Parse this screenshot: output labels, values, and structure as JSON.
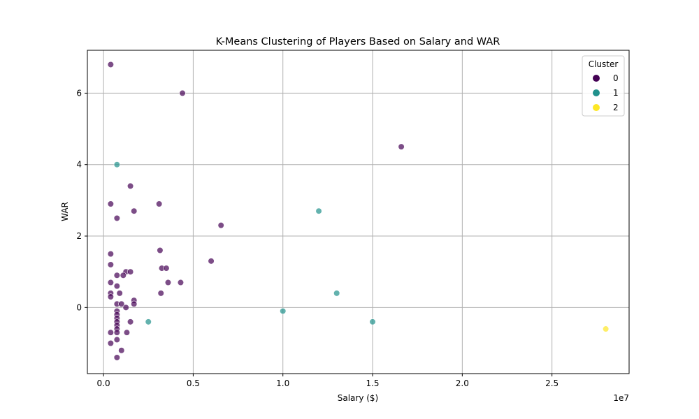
{
  "chart_data": {
    "type": "scatter",
    "title": "K-Means Clustering of Players Based on Salary and WAR",
    "xlabel": "Salary ($)",
    "ylabel": "WAR",
    "x_offset_label": "1e7",
    "xlim": [
      -0.09,
      2.93
    ],
    "ylim": [
      -1.85,
      7.2
    ],
    "x_ticks": [
      0.0,
      0.5,
      1.0,
      1.5,
      2.0,
      2.5
    ],
    "x_tick_labels": [
      "0.0",
      "0.5",
      "1.0",
      "1.5",
      "2.0",
      "2.5"
    ],
    "y_ticks": [
      0,
      2,
      4,
      6
    ],
    "y_tick_labels": [
      "0",
      "2",
      "4",
      "6"
    ],
    "grid": true,
    "legend": {
      "title": "Cluster",
      "placement": "top-right",
      "entries": [
        {
          "label": "0",
          "color": "#440154"
        },
        {
          "label": "1",
          "color": "#21918c"
        },
        {
          "label": "2",
          "color": "#fde725"
        }
      ]
    },
    "points": [
      {
        "x": 0.04,
        "y": 6.8,
        "cluster": 0
      },
      {
        "x": 0.44,
        "y": 6.0,
        "cluster": 0
      },
      {
        "x": 1.66,
        "y": 4.5,
        "cluster": 0
      },
      {
        "x": 0.075,
        "y": 4.0,
        "cluster": 1
      },
      {
        "x": 0.15,
        "y": 3.4,
        "cluster": 0
      },
      {
        "x": 0.04,
        "y": 2.9,
        "cluster": 0
      },
      {
        "x": 0.31,
        "y": 2.9,
        "cluster": 0
      },
      {
        "x": 0.17,
        "y": 2.7,
        "cluster": 0
      },
      {
        "x": 1.2,
        "y": 2.7,
        "cluster": 1
      },
      {
        "x": 0.075,
        "y": 2.5,
        "cluster": 0
      },
      {
        "x": 0.655,
        "y": 2.3,
        "cluster": 0
      },
      {
        "x": 0.315,
        "y": 1.6,
        "cluster": 0
      },
      {
        "x": 0.04,
        "y": 1.5,
        "cluster": 0
      },
      {
        "x": 0.6,
        "y": 1.3,
        "cluster": 0
      },
      {
        "x": 0.04,
        "y": 1.2,
        "cluster": 0
      },
      {
        "x": 0.325,
        "y": 1.1,
        "cluster": 0
      },
      {
        "x": 0.35,
        "y": 1.1,
        "cluster": 0
      },
      {
        "x": 0.125,
        "y": 1.0,
        "cluster": 0
      },
      {
        "x": 0.15,
        "y": 1.0,
        "cluster": 0
      },
      {
        "x": 0.075,
        "y": 0.9,
        "cluster": 0
      },
      {
        "x": 0.11,
        "y": 0.9,
        "cluster": 0
      },
      {
        "x": 0.04,
        "y": 0.7,
        "cluster": 0
      },
      {
        "x": 0.36,
        "y": 0.7,
        "cluster": 0
      },
      {
        "x": 0.43,
        "y": 0.7,
        "cluster": 0
      },
      {
        "x": 0.075,
        "y": 0.6,
        "cluster": 0
      },
      {
        "x": 0.04,
        "y": 0.4,
        "cluster": 0
      },
      {
        "x": 0.09,
        "y": 0.4,
        "cluster": 0
      },
      {
        "x": 0.32,
        "y": 0.4,
        "cluster": 0
      },
      {
        "x": 1.3,
        "y": 0.4,
        "cluster": 1
      },
      {
        "x": 0.04,
        "y": 0.3,
        "cluster": 0
      },
      {
        "x": 0.17,
        "y": 0.2,
        "cluster": 0
      },
      {
        "x": 0.075,
        "y": 0.1,
        "cluster": 0
      },
      {
        "x": 0.1,
        "y": 0.1,
        "cluster": 0
      },
      {
        "x": 0.17,
        "y": 0.1,
        "cluster": 0
      },
      {
        "x": 0.125,
        "y": 0.0,
        "cluster": 0
      },
      {
        "x": 0.075,
        "y": -0.1,
        "cluster": 0
      },
      {
        "x": 1.0,
        "y": -0.1,
        "cluster": 1
      },
      {
        "x": 0.075,
        "y": -0.2,
        "cluster": 0
      },
      {
        "x": 0.075,
        "y": -0.3,
        "cluster": 0
      },
      {
        "x": 0.075,
        "y": -0.4,
        "cluster": 0
      },
      {
        "x": 0.15,
        "y": -0.4,
        "cluster": 0
      },
      {
        "x": 0.25,
        "y": -0.4,
        "cluster": 1
      },
      {
        "x": 1.5,
        "y": -0.4,
        "cluster": 1
      },
      {
        "x": 0.075,
        "y": -0.5,
        "cluster": 0
      },
      {
        "x": 0.075,
        "y": -0.6,
        "cluster": 0
      },
      {
        "x": 2.8,
        "y": -0.6,
        "cluster": 2
      },
      {
        "x": 0.04,
        "y": -0.7,
        "cluster": 0
      },
      {
        "x": 0.075,
        "y": -0.7,
        "cluster": 0
      },
      {
        "x": 0.13,
        "y": -0.7,
        "cluster": 0
      },
      {
        "x": 0.075,
        "y": -0.9,
        "cluster": 0
      },
      {
        "x": 0.04,
        "y": -1.0,
        "cluster": 0
      },
      {
        "x": 0.1,
        "y": -1.2,
        "cluster": 0
      },
      {
        "x": 0.075,
        "y": -1.4,
        "cluster": 0
      }
    ]
  }
}
